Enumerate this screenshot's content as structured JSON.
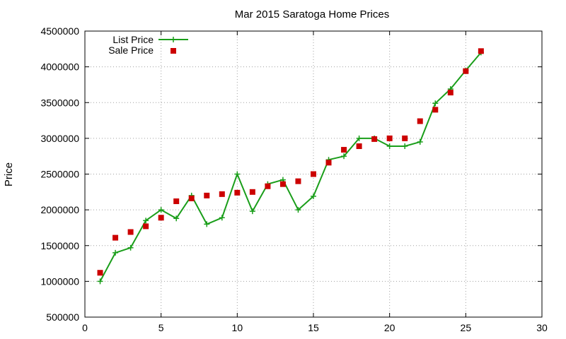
{
  "chart_data": {
    "type": "line",
    "title": "Mar 2015 Saratoga Home Prices",
    "xlabel": "",
    "ylabel": "Price",
    "xlim": [
      0,
      30
    ],
    "ylim": [
      500000,
      4500000
    ],
    "grid": true,
    "legend_position": "top-left",
    "x_ticks": [
      0,
      5,
      10,
      15,
      20,
      25,
      30
    ],
    "y_ticks": [
      500000,
      1000000,
      1500000,
      2000000,
      2500000,
      3000000,
      3500000,
      4000000,
      4500000
    ],
    "x_tick_labels": [
      "0",
      "5",
      "10",
      "15",
      "20",
      "25",
      "30"
    ],
    "y_tick_labels": [
      "500000",
      "1000000",
      "1500000",
      "2000000",
      "2500000",
      "3000000",
      "3500000",
      "4000000",
      "4500000"
    ],
    "series": [
      {
        "name": "List Price",
        "style": "line-points",
        "color": "#1a9e1a",
        "x": [
          1,
          2,
          3,
          4,
          5,
          6,
          7,
          8,
          9,
          10,
          11,
          12,
          13,
          14,
          15,
          16,
          17,
          18,
          19,
          20,
          21,
          22,
          23,
          24,
          25,
          26
        ],
        "values": [
          1000000,
          1400000,
          1470000,
          1850000,
          2000000,
          1880000,
          2200000,
          1800000,
          1890000,
          2500000,
          1980000,
          2360000,
          2420000,
          2000000,
          2190000,
          2700000,
          2750000,
          3000000,
          3000000,
          2890000,
          2890000,
          2950000,
          3490000,
          3690000,
          3950000,
          4200000
        ]
      },
      {
        "name": "Sale Price",
        "style": "points",
        "color": "#cc0000",
        "x": [
          1,
          2,
          3,
          4,
          5,
          6,
          7,
          8,
          9,
          10,
          11,
          12,
          13,
          14,
          15,
          16,
          17,
          18,
          19,
          20,
          21,
          22,
          23,
          24,
          25,
          26
        ],
        "values": [
          1120000,
          1610000,
          1690000,
          1770000,
          1890000,
          2120000,
          2160000,
          2200000,
          2220000,
          2240000,
          2250000,
          2330000,
          2360000,
          2400000,
          2500000,
          2660000,
          2840000,
          2890000,
          2990000,
          3000000,
          3000000,
          3240000,
          3400000,
          3640000,
          3940000,
          4220000
        ]
      }
    ]
  }
}
